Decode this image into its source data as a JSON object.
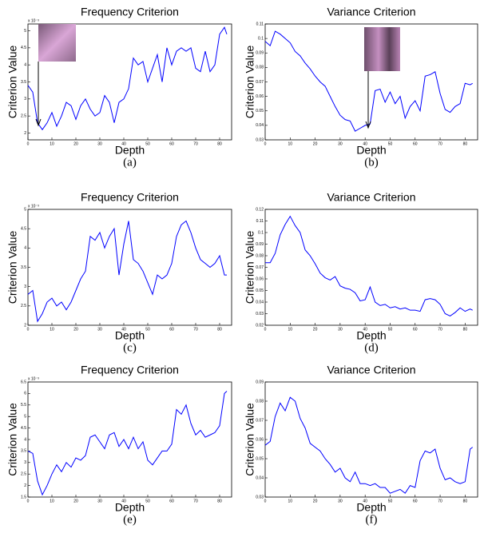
{
  "chart_data": [
    {
      "type": "line",
      "title": "Frequency Criterion",
      "x_label": "Depth",
      "y_label": "Criterion Value",
      "y_scale_label": "x 10⁻³",
      "caption": "(a)",
      "color": "#0000ff",
      "grid": false,
      "x": [
        0,
        2,
        4,
        6,
        8,
        10,
        12,
        14,
        16,
        18,
        20,
        22,
        24,
        26,
        28,
        30,
        32,
        34,
        36,
        38,
        40,
        42,
        44,
        46,
        48,
        50,
        52,
        54,
        56,
        58,
        60,
        62,
        64,
        66,
        68,
        70,
        72,
        74,
        76,
        78,
        80,
        82,
        83
      ],
      "values": [
        3.4,
        3.2,
        2.3,
        2.1,
        2.3,
        2.6,
        2.2,
        2.5,
        2.9,
        2.8,
        2.4,
        2.8,
        3.0,
        2.7,
        2.5,
        2.6,
        3.1,
        2.9,
        2.3,
        2.9,
        3.0,
        3.3,
        4.2,
        4.0,
        4.1,
        3.5,
        3.9,
        4.3,
        3.5,
        4.5,
        4.0,
        4.4,
        4.5,
        4.4,
        4.5,
        3.9,
        3.8,
        4.4,
        3.8,
        4.0,
        4.9,
        5.1,
        4.9
      ],
      "xlim": [
        0,
        85
      ],
      "xticks": [
        0,
        10,
        20,
        30,
        40,
        50,
        60,
        70,
        80
      ],
      "ylim": [
        1.8,
        5.2
      ],
      "yticks": [
        2,
        2.5,
        3,
        3.5,
        4,
        4.5,
        5
      ]
    },
    {
      "type": "line",
      "title": "Variance Criterion",
      "x_label": "Depth",
      "y_label": "Criterion Value",
      "caption": "(b)",
      "color": "#0000ff",
      "grid": false,
      "x": [
        0,
        2,
        4,
        6,
        8,
        10,
        12,
        14,
        16,
        18,
        20,
        22,
        24,
        26,
        28,
        30,
        32,
        34,
        36,
        38,
        40,
        42,
        44,
        46,
        48,
        50,
        52,
        54,
        56,
        58,
        60,
        62,
        64,
        66,
        68,
        70,
        72,
        74,
        76,
        78,
        80,
        82,
        83
      ],
      "values": [
        0.098,
        0.095,
        0.105,
        0.103,
        0.1,
        0.097,
        0.091,
        0.088,
        0.083,
        0.079,
        0.074,
        0.07,
        0.067,
        0.06,
        0.053,
        0.047,
        0.044,
        0.043,
        0.036,
        0.038,
        0.04,
        0.041,
        0.064,
        0.065,
        0.056,
        0.063,
        0.055,
        0.06,
        0.045,
        0.053,
        0.057,
        0.05,
        0.074,
        0.075,
        0.077,
        0.062,
        0.051,
        0.049,
        0.053,
        0.055,
        0.069,
        0.068,
        0.069
      ],
      "xlim": [
        0,
        85
      ],
      "xticks": [
        0,
        10,
        20,
        30,
        40,
        50,
        60,
        70,
        80
      ],
      "ylim": [
        0.03,
        0.11
      ],
      "yticks": [
        0.03,
        0.04,
        0.05,
        0.06,
        0.07,
        0.08,
        0.09,
        0.1,
        0.11
      ]
    },
    {
      "type": "line",
      "title": "Frequency Criterion",
      "x_label": "Depth",
      "y_label": "Criterion Value",
      "y_scale_label": "x 10⁻³",
      "caption": "(c)",
      "color": "#0000ff",
      "grid": false,
      "x": [
        0,
        2,
        4,
        6,
        8,
        10,
        12,
        14,
        16,
        18,
        20,
        22,
        24,
        26,
        28,
        30,
        32,
        34,
        36,
        38,
        40,
        42,
        44,
        46,
        48,
        50,
        52,
        54,
        56,
        58,
        60,
        62,
        64,
        66,
        68,
        70,
        72,
        74,
        76,
        78,
        80,
        82,
        83
      ],
      "values": [
        2.8,
        2.9,
        2.1,
        2.3,
        2.6,
        2.7,
        2.5,
        2.6,
        2.4,
        2.6,
        2.9,
        3.2,
        3.4,
        4.3,
        4.2,
        4.4,
        4.0,
        4.3,
        4.5,
        3.3,
        4.1,
        4.7,
        3.7,
        3.6,
        3.4,
        3.1,
        2.8,
        3.3,
        3.2,
        3.3,
        3.6,
        4.3,
        4.6,
        4.7,
        4.4,
        4.0,
        3.7,
        3.6,
        3.5,
        3.6,
        3.8,
        3.3,
        3.3
      ],
      "xlim": [
        0,
        85
      ],
      "xticks": [
        0,
        10,
        20,
        30,
        40,
        50,
        60,
        70,
        80
      ],
      "ylim": [
        2,
        5
      ],
      "yticks": [
        2,
        2.5,
        3,
        3.5,
        4,
        4.5,
        5
      ]
    },
    {
      "type": "line",
      "title": "Variance Criterion",
      "x_label": "Depth",
      "y_label": "Criterion Value",
      "caption": "(d)",
      "color": "#0000ff",
      "grid": false,
      "x": [
        0,
        2,
        4,
        6,
        8,
        10,
        12,
        14,
        16,
        18,
        20,
        22,
        24,
        26,
        28,
        30,
        32,
        34,
        36,
        38,
        40,
        42,
        44,
        46,
        48,
        50,
        52,
        54,
        56,
        58,
        60,
        62,
        64,
        66,
        68,
        70,
        72,
        74,
        76,
        78,
        80,
        82,
        83
      ],
      "values": [
        0.074,
        0.074,
        0.082,
        0.098,
        0.107,
        0.114,
        0.106,
        0.1,
        0.085,
        0.08,
        0.073,
        0.065,
        0.061,
        0.059,
        0.062,
        0.054,
        0.052,
        0.051,
        0.048,
        0.041,
        0.042,
        0.053,
        0.04,
        0.037,
        0.038,
        0.035,
        0.036,
        0.034,
        0.035,
        0.033,
        0.033,
        0.032,
        0.042,
        0.043,
        0.042,
        0.038,
        0.03,
        0.028,
        0.031,
        0.035,
        0.032,
        0.034,
        0.033
      ],
      "xlim": [
        0,
        85
      ],
      "xticks": [
        0,
        10,
        20,
        30,
        40,
        50,
        60,
        70,
        80
      ],
      "ylim": [
        0.02,
        0.12
      ],
      "yticks": [
        0.02,
        0.03,
        0.04,
        0.05,
        0.06,
        0.07,
        0.08,
        0.09,
        0.1,
        0.11,
        0.12
      ]
    },
    {
      "type": "line",
      "title": "Frequency Criterion",
      "x_label": "Depth",
      "y_label": "Criterion Value",
      "y_scale_label": "x 10⁻³",
      "caption": "(e)",
      "color": "#0000ff",
      "grid": false,
      "x": [
        0,
        2,
        4,
        6,
        8,
        10,
        12,
        14,
        16,
        18,
        20,
        22,
        24,
        26,
        28,
        30,
        32,
        34,
        36,
        38,
        40,
        42,
        44,
        46,
        48,
        50,
        52,
        54,
        56,
        58,
        60,
        62,
        64,
        66,
        68,
        70,
        72,
        74,
        76,
        78,
        80,
        82,
        83
      ],
      "values": [
        3.5,
        3.4,
        2.2,
        1.6,
        2.0,
        2.5,
        2.9,
        2.6,
        3.0,
        2.8,
        3.2,
        3.1,
        3.3,
        4.1,
        4.2,
        3.9,
        3.6,
        4.2,
        4.3,
        3.7,
        4.0,
        3.6,
        4.1,
        3.6,
        3.9,
        3.1,
        2.9,
        3.2,
        3.5,
        3.5,
        3.8,
        5.3,
        5.1,
        5.5,
        4.7,
        4.2,
        4.4,
        4.1,
        4.2,
        4.3,
        4.6,
        6.0,
        6.1
      ],
      "xlim": [
        0,
        85
      ],
      "xticks": [
        0,
        10,
        20,
        30,
        40,
        50,
        60,
        70,
        80
      ],
      "ylim": [
        1.5,
        6.5
      ],
      "yticks": [
        1.5,
        2,
        2.5,
        3,
        3.5,
        4,
        4.5,
        5,
        5.5,
        6,
        6.5
      ]
    },
    {
      "type": "line",
      "title": "Variance Criterion",
      "x_label": "Depth",
      "y_label": "Criterion Value",
      "caption": "(f)",
      "color": "#0000ff",
      "grid": false,
      "x": [
        0,
        2,
        4,
        6,
        8,
        10,
        12,
        14,
        16,
        18,
        20,
        22,
        24,
        26,
        28,
        30,
        32,
        34,
        36,
        38,
        40,
        42,
        44,
        46,
        48,
        50,
        52,
        54,
        56,
        58,
        60,
        62,
        64,
        66,
        68,
        70,
        72,
        74,
        76,
        78,
        80,
        82,
        83
      ],
      "values": [
        0.057,
        0.059,
        0.072,
        0.079,
        0.075,
        0.082,
        0.08,
        0.071,
        0.066,
        0.058,
        0.056,
        0.054,
        0.05,
        0.047,
        0.043,
        0.045,
        0.04,
        0.038,
        0.043,
        0.037,
        0.037,
        0.036,
        0.037,
        0.035,
        0.035,
        0.032,
        0.033,
        0.034,
        0.032,
        0.036,
        0.035,
        0.049,
        0.054,
        0.053,
        0.055,
        0.045,
        0.039,
        0.04,
        0.038,
        0.037,
        0.038,
        0.055,
        0.056
      ],
      "xlim": [
        0,
        85
      ],
      "xticks": [
        0,
        10,
        20,
        30,
        40,
        50,
        60,
        70,
        80
      ],
      "ylim": [
        0.03,
        0.09
      ],
      "yticks": [
        0.03,
        0.04,
        0.05,
        0.06,
        0.07,
        0.08,
        0.09
      ]
    }
  ]
}
